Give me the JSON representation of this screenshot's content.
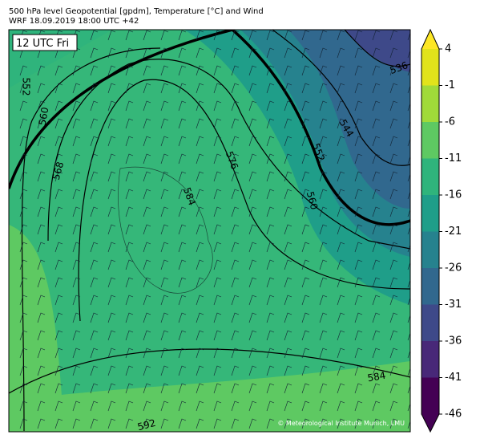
{
  "header": {
    "title": "500 hPa level Geopotential [gpdm], Temperature [°C] and Wind",
    "subtitle": "WRF 18.09.2019 18:00 UTC +42"
  },
  "map": {
    "time_label": "12 UTC Fri",
    "contour_labels": [
      552,
      560,
      568,
      576,
      584,
      536,
      544,
      552,
      560,
      584,
      592
    ],
    "credit": "© Meteorological Institute Munich, LMU"
  },
  "colorbar": {
    "lim": [
      -46,
      4
    ],
    "ticks": [
      4,
      -1,
      -6,
      -11,
      -16,
      -21,
      -26,
      -31,
      -36,
      -41,
      -46
    ],
    "colors": [
      "#fde725",
      "#e1e31b",
      "#a0da39",
      "#5ec962",
      "#2fb47c",
      "#1f9e89",
      "#26828e",
      "#31688e",
      "#3e4989",
      "#482878",
      "#440154"
    ]
  }
}
